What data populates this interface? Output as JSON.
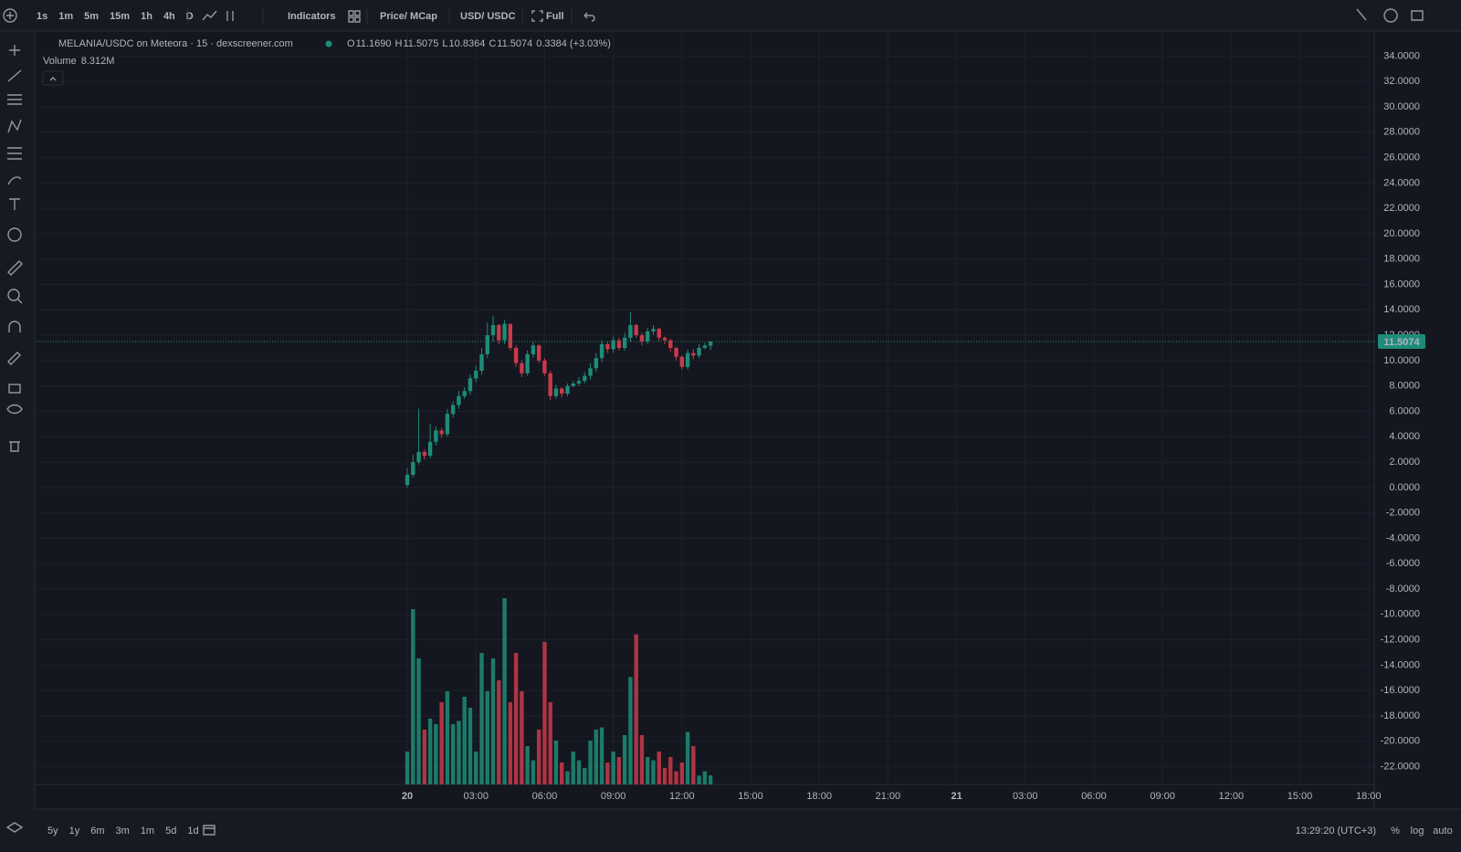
{
  "toolbar": {
    "timeframes": [
      "1s",
      "1m",
      "5m",
      "15m",
      "1h",
      "4h",
      "D"
    ],
    "indicators": "Indicators",
    "price": "Price",
    "mcap": " / MCap",
    "usd": "USD",
    "usdc": " / USDC",
    "full": "Full"
  },
  "legend": {
    "symbol": "MELANIA/USDC on Meteora · 15 · dexscreener.com",
    "o_label": "O",
    "o": "11.1690",
    "h_label": "H",
    "h": "11.5075",
    "l_label": "L",
    "l": "10.8364",
    "c_label": "C",
    "c": "11.5074",
    "change": "0.3384 (+3.03%)",
    "volume_label": "Volume",
    "volume": "8.312M"
  },
  "bottom": {
    "ranges": [
      "5y",
      "1y",
      "6m",
      "3m",
      "1m",
      "5d",
      "1d"
    ],
    "clock": "13:29:20 (UTC+3)",
    "percent": "%",
    "log": "log",
    "auto": "auto"
  },
  "chart_data": {
    "type": "candlestick",
    "up_color": "#1e8c78",
    "down_color": "#c93a4b",
    "open": [
      0.2,
      1.0,
      2.0,
      2.8,
      2.5,
      3.6,
      4.5,
      4.2,
      5.8,
      6.5,
      7.2,
      7.6,
      8.6,
      9.2,
      10.5,
      12.0,
      12.8,
      11.6,
      12.9,
      11.0,
      9.8,
      9.0,
      10.5,
      11.2,
      10.0,
      9.0,
      7.2,
      7.8,
      7.4,
      8.0,
      8.2,
      8.4,
      8.8,
      9.4,
      10.2,
      11.3,
      10.9,
      11.6,
      11.0,
      11.8,
      12.8,
      12.0,
      11.5,
      12.3,
      12.5,
      11.8,
      11.6,
      11.0,
      10.3,
      9.5,
      10.6,
      10.4,
      11.0,
      11.169
    ],
    "high": [
      1.5,
      2.6,
      6.2,
      3.0,
      5.0,
      4.8,
      4.7,
      6.2,
      6.8,
      7.6,
      7.9,
      8.9,
      9.6,
      11.0,
      13.0,
      13.5,
      12.9,
      13.2,
      12.9,
      11.2,
      10.0,
      10.8,
      11.5,
      11.3,
      10.2,
      9.2,
      8.1,
      7.9,
      8.2,
      8.4,
      8.7,
      9.1,
      9.8,
      10.6,
      11.6,
      11.5,
      11.9,
      11.8,
      12.2,
      13.8,
      12.9,
      12.2,
      12.6,
      12.8,
      12.6,
      11.9,
      11.7,
      11.1,
      10.4,
      10.9,
      10.9,
      11.3,
      11.4,
      11.5075
    ],
    "low": [
      0.0,
      0.8,
      1.8,
      2.2,
      2.3,
      3.3,
      3.9,
      4.0,
      5.5,
      6.2,
      7.0,
      7.3,
      8.3,
      8.9,
      10.2,
      11.5,
      11.3,
      11.3,
      10.8,
      9.5,
      8.7,
      8.8,
      10.2,
      9.8,
      8.8,
      6.9,
      7.0,
      7.1,
      7.2,
      7.9,
      8.0,
      8.2,
      8.5,
      9.1,
      9.9,
      10.6,
      10.6,
      10.8,
      10.8,
      11.5,
      11.8,
      11.2,
      11.3,
      12.0,
      11.5,
      11.3,
      10.7,
      10.0,
      9.3,
      9.3,
      10.1,
      10.2,
      10.9,
      10.8364
    ],
    "close": [
      1.0,
      2.0,
      2.8,
      2.5,
      3.6,
      4.5,
      4.2,
      5.8,
      6.5,
      7.2,
      7.6,
      8.6,
      9.2,
      10.5,
      12.0,
      12.8,
      11.6,
      12.9,
      11.0,
      9.8,
      9.0,
      10.5,
      11.2,
      10.0,
      9.0,
      7.2,
      7.8,
      7.4,
      8.0,
      8.2,
      8.4,
      8.8,
      9.4,
      10.2,
      11.3,
      10.9,
      11.6,
      11.0,
      11.8,
      12.8,
      12.0,
      11.5,
      12.3,
      12.5,
      11.8,
      11.6,
      11.0,
      10.3,
      9.5,
      10.6,
      10.4,
      11.0,
      11.2,
      11.5074
    ],
    "volume": [
      30,
      160,
      115,
      50,
      60,
      55,
      75,
      85,
      55,
      58,
      80,
      70,
      30,
      120,
      85,
      115,
      95,
      170,
      75,
      120,
      85,
      35,
      22,
      50,
      130,
      75,
      40,
      20,
      12,
      30,
      22,
      15,
      40,
      50,
      52,
      20,
      30,
      25,
      45,
      98,
      137,
      45,
      25,
      22,
      30,
      15,
      25,
      12,
      20,
      48,
      35,
      8,
      12,
      8.312
    ],
    "last_price_label": "11.5074",
    "ylim": [
      -23.4,
      35.9
    ],
    "yticks": [
      {
        "value": 34,
        "label": "34.0000"
      },
      {
        "value": 32,
        "label": "32.0000"
      },
      {
        "value": 30,
        "label": "30.0000"
      },
      {
        "value": 28,
        "label": "28.0000"
      },
      {
        "value": 26,
        "label": "26.0000"
      },
      {
        "value": 24,
        "label": "24.0000"
      },
      {
        "value": 22,
        "label": "22.0000"
      },
      {
        "value": 20,
        "label": "20.0000"
      },
      {
        "value": 18,
        "label": "18.0000"
      },
      {
        "value": 16,
        "label": "16.0000"
      },
      {
        "value": 14,
        "label": "14.0000"
      },
      {
        "value": 12,
        "label": "12.0000"
      },
      {
        "value": 10,
        "label": "10.0000"
      },
      {
        "value": 8,
        "label": "8.0000"
      },
      {
        "value": 6,
        "label": "6.0000"
      },
      {
        "value": 4,
        "label": "4.0000"
      },
      {
        "value": 2,
        "label": "2.0000"
      },
      {
        "value": 0,
        "label": "0.0000"
      },
      {
        "value": -2,
        "label": "-2.0000"
      },
      {
        "value": -4,
        "label": "-4.0000"
      },
      {
        "value": -6,
        "label": "-6.0000"
      },
      {
        "value": -8,
        "label": "-8.0000"
      },
      {
        "value": -10,
        "label": "-10.0000"
      },
      {
        "value": -12,
        "label": "-12.0000"
      },
      {
        "value": -14,
        "label": "-14.0000"
      },
      {
        "value": -16,
        "label": "-16.0000"
      },
      {
        "value": -18,
        "label": "-18.0000"
      },
      {
        "value": -20,
        "label": "-20.0000"
      },
      {
        "value": -22,
        "label": "-22.0000"
      }
    ],
    "xlim": [
      -64.8,
      169
    ],
    "xticks": [
      {
        "value": 0,
        "label": "20"
      },
      {
        "value": 12,
        "label": "03:00"
      },
      {
        "value": 24,
        "label": "06:00"
      },
      {
        "value": 36,
        "label": "09:00"
      },
      {
        "value": 48,
        "label": "12:00"
      },
      {
        "value": 60,
        "label": "15:00"
      },
      {
        "value": 72,
        "label": "18:00"
      },
      {
        "value": 84,
        "label": "21:00"
      },
      {
        "value": 96,
        "label": "21"
      },
      {
        "value": 108,
        "label": "03:00"
      },
      {
        "value": 120,
        "label": "06:00"
      },
      {
        "value": 132,
        "label": "09:00"
      },
      {
        "value": 144,
        "label": "12:00"
      },
      {
        "value": 156,
        "label": "15:00"
      },
      {
        "value": 168,
        "label": "18:00"
      }
    ],
    "grid": true
  }
}
